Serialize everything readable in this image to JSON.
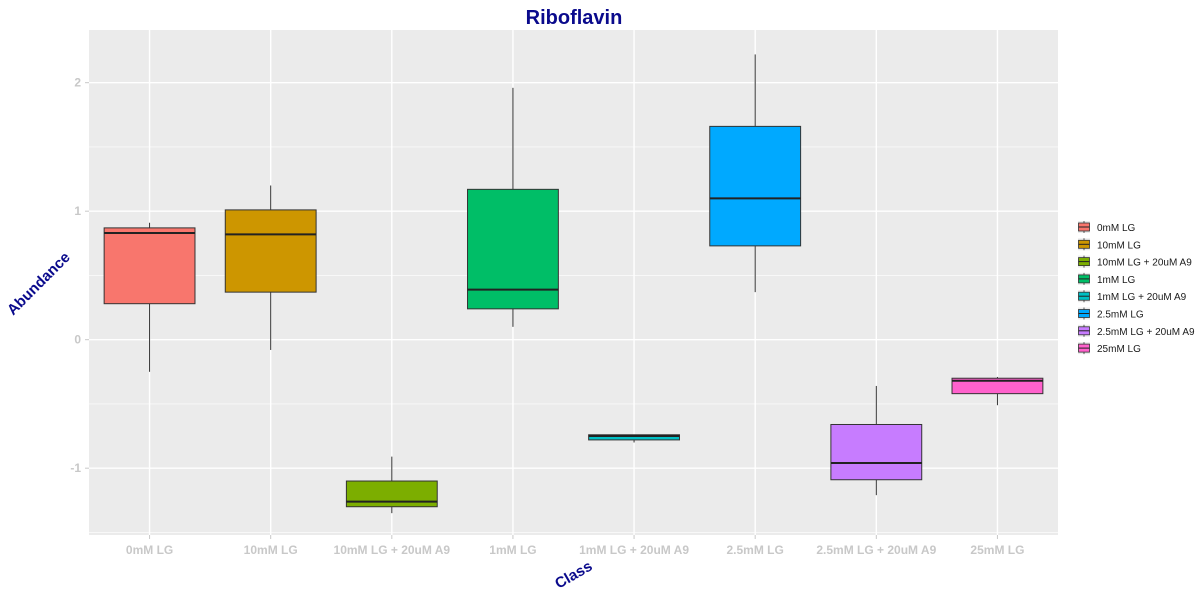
{
  "chart_data": {
    "type": "box",
    "title": "Riboflavin",
    "xlabel": "Class",
    "ylabel": "Abundance",
    "ylim": [
      -1.52,
      2.41
    ],
    "yticks": [
      "-1",
      "0",
      "1",
      "2"
    ],
    "grid": true,
    "legend_position": "right",
    "categories": [
      "0mM LG",
      "10mM LG",
      "10mM LG + 20uM A9",
      "1mM LG",
      "1mM LG + 20uM A9",
      "2.5mM LG",
      "2.5mM LG + 20uM A9",
      "25mM LG"
    ],
    "series": [
      {
        "name": "0mM LG",
        "color": "#F8766D",
        "whisker_low": -0.25,
        "q1": 0.28,
        "median": 0.83,
        "q3": 0.87,
        "whisker_high": 0.91
      },
      {
        "name": "10mM LG",
        "color": "#CD9600",
        "whisker_low": -0.08,
        "q1": 0.37,
        "median": 0.82,
        "q3": 1.01,
        "whisker_high": 1.2
      },
      {
        "name": "10mM LG + 20uM A9",
        "color": "#7CAE00",
        "whisker_low": -1.35,
        "q1": -1.3,
        "median": -1.26,
        "q3": -1.1,
        "whisker_high": -0.91
      },
      {
        "name": "1mM LG",
        "color": "#00BE67",
        "whisker_low": 0.1,
        "q1": 0.24,
        "median": 0.39,
        "q3": 1.17,
        "whisker_high": 1.96
      },
      {
        "name": "1mM LG + 20uM A9",
        "color": "#00BFC4",
        "whisker_low": -0.8,
        "q1": -0.78,
        "median": -0.75,
        "q3": -0.74,
        "whisker_high": -0.74
      },
      {
        "name": "2.5mM LG",
        "color": "#00A9FF",
        "whisker_low": 0.37,
        "q1": 0.73,
        "median": 1.1,
        "q3": 1.66,
        "whisker_high": 2.22
      },
      {
        "name": "2.5mM LG + 20uM A9",
        "color": "#C77CFF",
        "whisker_low": -1.21,
        "q1": -1.09,
        "median": -0.96,
        "q3": -0.66,
        "whisker_high": -0.36
      },
      {
        "name": "25mM LG",
        "color": "#FF61CC",
        "whisker_low": -0.51,
        "q1": -0.42,
        "median": -0.32,
        "q3": -0.3,
        "whisker_high": -0.29
      }
    ]
  }
}
